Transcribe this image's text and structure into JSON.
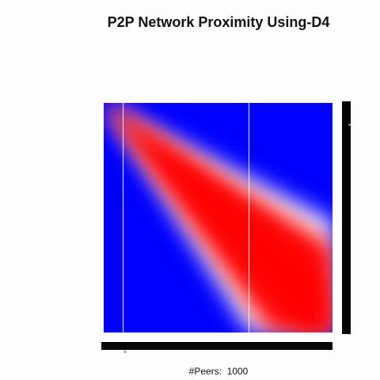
{
  "chart_data": {
    "type": "heatmap",
    "title": "P2P Network Proximity Using-D4",
    "xlabel": "#Peers:  1000",
    "ylabel": "",
    "x_tick_labels": "dense unreadable labels along x axis",
    "y_tick_labels": "dense unreadable labels along y axis",
    "colormap": {
      "low": "#0000ff",
      "mid": "#ffffff",
      "high": "#ff0000"
    },
    "matrix_size": [
      1000,
      1000
    ],
    "pattern": "proximity highest (red) in a widening wedge from the top-left corner toward the bottom-right, fading through white to blue away from it",
    "highlight_columns_fraction": [
      0.085,
      0.635
    ]
  }
}
